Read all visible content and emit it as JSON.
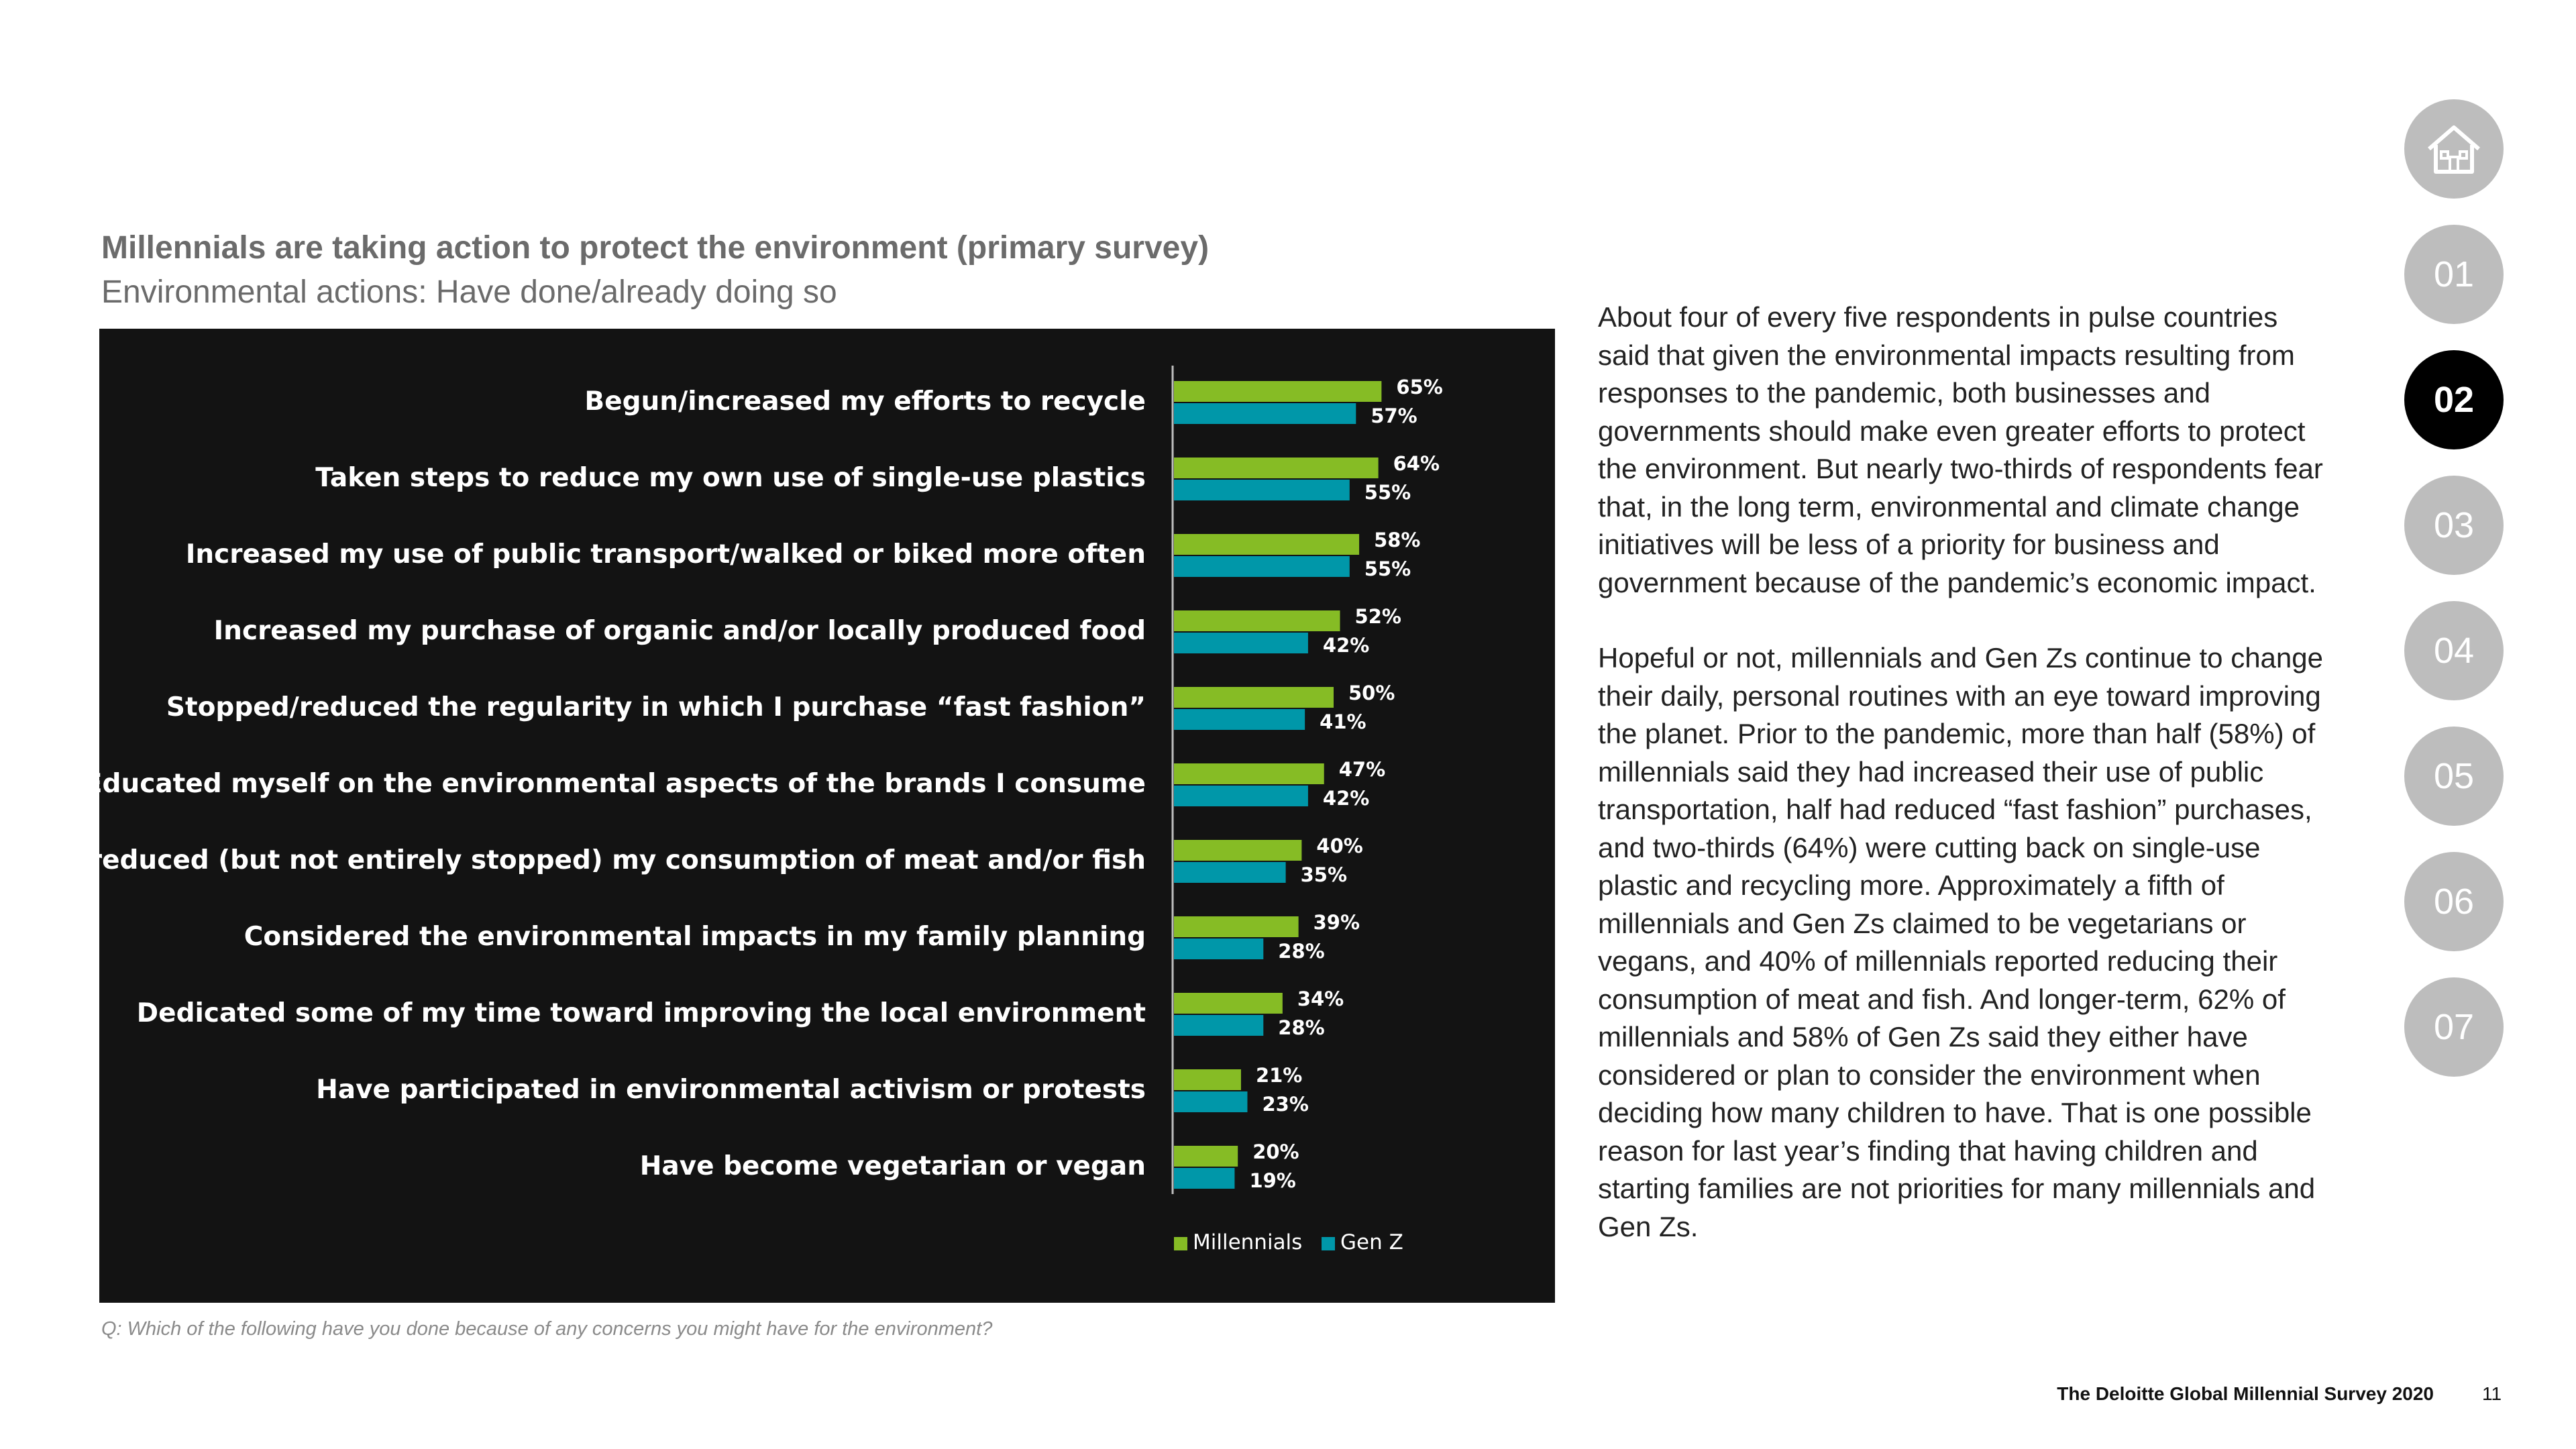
{
  "title": "Millennials are taking action to protect the environment (primary survey)",
  "subtitle": "Environmental actions: Have done/already doing so",
  "question": "Q: Which of the following have you done because of any concerns you might have for the environment?",
  "body": {
    "paragraph1": "About four of every five respondents in pulse countries said that given the environmental impacts resulting from responses to the pandemic, both businesses and governments should make even greater efforts to protect the environment. But nearly two-thirds of respondents fear that, in the long term, environmental and climate change initiatives will be less of a priority for business and government because of the pandemic’s economic impact.",
    "paragraph2": "Hopeful or not, millennials and Gen Zs continue to change their daily, personal routines with an eye toward improving the planet. Prior to the pandemic, more than half (58%) of millennials said they had increased their use of public transportation, half had reduced “fast fashion” purchases, and two-thirds (64%) were cutting back on single-use plastic and recycling more. Approximately a fifth of millennials and Gen Zs claimed to be vegetarians or vegans, and 40% of millennials reported reducing their consumption of meat and fish. And longer-term, 62% of millennials and 58% of Gen Zs said they either have considered or plan to consider the environment when deciding how many children to have. That is one possible reason for last year’s finding that having children and starting families are not priorities for many millennials and Gen Zs."
  },
  "nav": {
    "home_icon": "home-icon",
    "items": [
      "01",
      "02",
      "03",
      "04",
      "05",
      "06",
      "07"
    ],
    "active": "02"
  },
  "footer": {
    "title": "The Deloitte Global Millennial Survey 2020",
    "page": "11"
  },
  "colors": {
    "millennials": "#86bc25",
    "genz": "#0097a9",
    "panel": "#131313",
    "nav_inactive": "#bdbdbd",
    "nav_active": "#000000"
  },
  "chart_data": {
    "type": "bar",
    "orientation": "horizontal",
    "categories": [
      "Begun/increased my efforts to recycle",
      "Taken steps to reduce my own use of single-use plastics",
      "Increased my use of public transport/walked or biked more often",
      "Increased my purchase of organic and/or locally produced food",
      "Stopped/reduced the regularity in which I purchase “fast fashion”",
      "Educated myself on the environmental aspects of the brands I consume",
      "Have reduced (but not entirely stopped) my consumption of meat and/or fish",
      "Considered the environmental impacts in my family planning",
      "Dedicated some of my time toward improving the local environment",
      "Have participated in environmental activism or protests",
      "Have become vegetarian or vegan"
    ],
    "series": [
      {
        "name": "Millennials",
        "color": "#86bc25",
        "values": [
          65,
          64,
          58,
          52,
          50,
          47,
          40,
          39,
          34,
          21,
          20
        ]
      },
      {
        "name": "Gen Z",
        "color": "#0097a9",
        "values": [
          57,
          55,
          55,
          42,
          41,
          42,
          35,
          28,
          28,
          23,
          19
        ]
      }
    ],
    "value_suffix": "%",
    "xlim": [
      0,
      100
    ],
    "grid": false,
    "legend": "bottom"
  }
}
